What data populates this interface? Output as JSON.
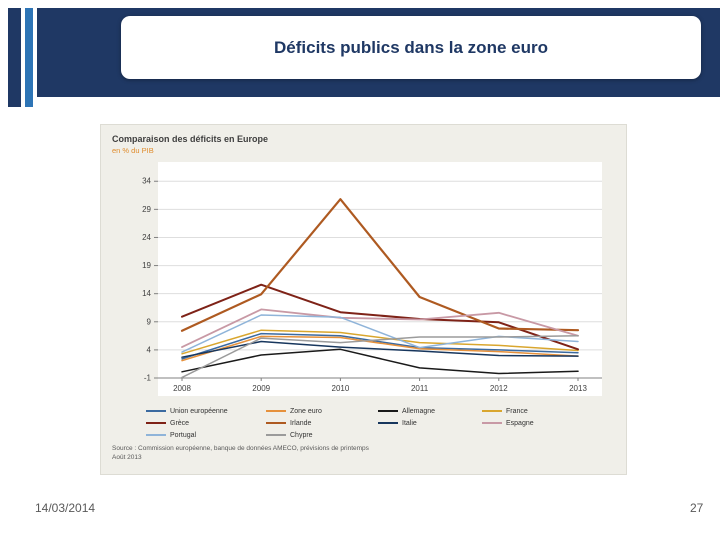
{
  "slide": {
    "title": "Déficits publics dans la zone euro",
    "date": "14/03/2014",
    "page_number": "27"
  },
  "chart": {
    "title": "Comparaison des déficits en Europe",
    "subtitle": "en % du PIB",
    "source_line1": "Source : Commission européenne, banque de données AMECO, prévisions de printemps",
    "source_line2": "Août 2013",
    "y_ticks": [
      34,
      29,
      24,
      19,
      14,
      9,
      4,
      -1
    ],
    "x_ticks": [
      "2008",
      "2009",
      "2010",
      "2011",
      "2012",
      "2013"
    ]
  },
  "chart_data": {
    "type": "line",
    "x": [
      "2008",
      "2009",
      "2010",
      "2011",
      "2012",
      "2013"
    ],
    "ylim": [
      -1,
      36
    ],
    "grid": true,
    "legend_position": "bottom",
    "ylabel": "en % du PIB",
    "series": [
      {
        "name": "Union européenne",
        "color": "#3B6AA0",
        "width": 1.5,
        "values": [
          2.4,
          6.9,
          6.5,
          4.4,
          4.0,
          3.5
        ]
      },
      {
        "name": "Zone euro",
        "color": "#E6913C",
        "width": 1.5,
        "values": [
          2.1,
          6.4,
          6.2,
          4.2,
          3.7,
          2.9
        ]
      },
      {
        "name": "Allemagne",
        "color": "#1A1A1A",
        "width": 1.5,
        "values": [
          0.1,
          3.1,
          4.1,
          0.8,
          -0.2,
          0.2
        ]
      },
      {
        "name": "France",
        "color": "#D9A62E",
        "width": 1.5,
        "values": [
          3.3,
          7.5,
          7.1,
          5.3,
          4.8,
          3.9
        ]
      },
      {
        "name": "Grèce",
        "color": "#7E2217",
        "width": 2.0,
        "values": [
          9.9,
          15.6,
          10.7,
          9.5,
          8.9,
          4.1
        ]
      },
      {
        "name": "Irlande",
        "color": "#AE5A21",
        "width": 2.2,
        "values": [
          7.4,
          13.9,
          30.8,
          13.4,
          7.8,
          7.5
        ]
      },
      {
        "name": "Italie",
        "color": "#17365D",
        "width": 1.5,
        "values": [
          2.7,
          5.5,
          4.5,
          3.8,
          3.0,
          2.9
        ]
      },
      {
        "name": "Espagne",
        "color": "#C899A5",
        "width": 1.8,
        "values": [
          4.5,
          11.2,
          9.7,
          9.4,
          10.6,
          6.5
        ]
      },
      {
        "name": "Portugal",
        "color": "#8FB4D9",
        "width": 1.5,
        "values": [
          3.6,
          10.2,
          9.8,
          4.4,
          6.4,
          5.5
        ]
      },
      {
        "name": "Chypre",
        "color": "#9B9B9B",
        "width": 1.5,
        "values": [
          -0.9,
          6.1,
          5.3,
          6.3,
          6.3,
          6.5
        ]
      }
    ]
  }
}
